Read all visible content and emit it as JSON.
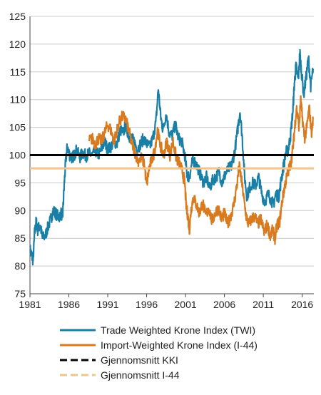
{
  "chart_data": {
    "type": "line",
    "title": "",
    "xlabel": "",
    "ylabel": "",
    "xlim": [
      1981,
      2017.5
    ],
    "ylim": [
      75,
      125
    ],
    "yticks": [
      75,
      80,
      85,
      90,
      95,
      100,
      105,
      110,
      115,
      120,
      125
    ],
    "xticks": [
      1981,
      1986,
      1991,
      1996,
      2001,
      2006,
      2011,
      2016
    ],
    "grid": true,
    "legend_position": "bottom",
    "colors": {
      "twi": "#1a7fa6",
      "i44": "#d97a1f",
      "avg_kki": "#000000",
      "avg_i44": "#f2c48d",
      "grid": "#cccccc"
    },
    "series": [
      {
        "name": "Trade Weighted Krone Index (TWI)",
        "points": [
          [
            1981.0,
            83.0
          ],
          [
            1981.2,
            82.0
          ],
          [
            1981.4,
            81.0
          ],
          [
            1981.6,
            86.0
          ],
          [
            1981.8,
            88.0
          ],
          [
            1982.0,
            86.5
          ],
          [
            1982.3,
            87.5
          ],
          [
            1982.6,
            85.0
          ],
          [
            1983.0,
            85.5
          ],
          [
            1983.3,
            87.0
          ],
          [
            1983.7,
            88.5
          ],
          [
            1984.0,
            90.0
          ],
          [
            1984.3,
            89.5
          ],
          [
            1984.7,
            88.8
          ],
          [
            1985.0,
            89.5
          ],
          [
            1985.2,
            89.0
          ],
          [
            1985.4,
            94.5
          ],
          [
            1985.6,
            99.0
          ],
          [
            1985.8,
            101.5
          ],
          [
            1986.1,
            100.0
          ],
          [
            1986.4,
            99.5
          ],
          [
            1986.7,
            100.0
          ],
          [
            1987.0,
            101.0
          ],
          [
            1987.4,
            99.5
          ],
          [
            1987.8,
            100.5
          ],
          [
            1988.2,
            99.8
          ],
          [
            1988.6,
            100.3
          ],
          [
            1989.0,
            100.0
          ],
          [
            1989.4,
            100.8
          ],
          [
            1989.8,
            100.0
          ],
          [
            1990.2,
            101.0
          ],
          [
            1990.6,
            102.5
          ],
          [
            1991.0,
            101.0
          ],
          [
            1991.4,
            101.5
          ],
          [
            1991.8,
            102.5
          ],
          [
            1992.2,
            102.0
          ],
          [
            1992.6,
            104.5
          ],
          [
            1993.0,
            104.0
          ],
          [
            1993.3,
            105.5
          ],
          [
            1993.7,
            103.5
          ],
          [
            1994.0,
            103.0
          ],
          [
            1994.4,
            102.5
          ],
          [
            1994.8,
            101.0
          ],
          [
            1995.2,
            102.0
          ],
          [
            1995.6,
            103.0
          ],
          [
            1996.0,
            102.0
          ],
          [
            1996.4,
            101.5
          ],
          [
            1996.8,
            103.0
          ],
          [
            1997.2,
            106.0
          ],
          [
            1997.5,
            112.0
          ],
          [
            1997.8,
            107.0
          ],
          [
            1998.1,
            104.5
          ],
          [
            1998.5,
            107.5
          ],
          [
            1998.9,
            104.0
          ],
          [
            1999.3,
            103.5
          ],
          [
            1999.7,
            105.5
          ],
          [
            2000.1,
            103.0
          ],
          [
            2000.5,
            102.5
          ],
          [
            2000.9,
            100.0
          ],
          [
            2001.2,
            96.5
          ],
          [
            2001.5,
            96.0
          ],
          [
            2001.8,
            98.5
          ],
          [
            2002.1,
            99.0
          ],
          [
            2002.5,
            98.0
          ],
          [
            2002.9,
            96.5
          ],
          [
            2003.3,
            95.0
          ],
          [
            2003.7,
            96.0
          ],
          [
            2004.1,
            94.0
          ],
          [
            2004.5,
            95.5
          ],
          [
            2004.9,
            96.0
          ],
          [
            2005.3,
            97.0
          ],
          [
            2005.7,
            95.0
          ],
          [
            2006.1,
            96.5
          ],
          [
            2006.5,
            97.5
          ],
          [
            2006.9,
            98.0
          ],
          [
            2007.3,
            100.5
          ],
          [
            2007.7,
            104.5
          ],
          [
            2008.0,
            108.0
          ],
          [
            2008.3,
            103.0
          ],
          [
            2008.6,
            96.0
          ],
          [
            2008.9,
            92.5
          ],
          [
            2009.2,
            94.0
          ],
          [
            2009.6,
            95.0
          ],
          [
            2010.0,
            94.5
          ],
          [
            2010.4,
            96.0
          ],
          [
            2010.8,
            93.0
          ],
          [
            2011.2,
            91.5
          ],
          [
            2011.6,
            93.0
          ],
          [
            2012.0,
            92.0
          ],
          [
            2012.3,
            91.0
          ],
          [
            2012.6,
            93.0
          ],
          [
            2013.0,
            92.5
          ],
          [
            2013.3,
            95.5
          ],
          [
            2013.6,
            98.0
          ],
          [
            2013.9,
            100.5
          ],
          [
            2014.2,
            101.0
          ],
          [
            2014.5,
            103.5
          ],
          [
            2014.8,
            108.0
          ],
          [
            2015.0,
            113.0
          ],
          [
            2015.2,
            116.0
          ],
          [
            2015.5,
            113.5
          ],
          [
            2015.7,
            118.5
          ],
          [
            2015.9,
            115.0
          ],
          [
            2016.2,
            111.0
          ],
          [
            2016.5,
            114.0
          ],
          [
            2016.8,
            117.5
          ],
          [
            2017.1,
            112.5
          ],
          [
            2017.4,
            115.5
          ]
        ]
      },
      {
        "name": "Import-Weighted Krone Index (I-44)",
        "points": [
          [
            1988.6,
            102.5
          ],
          [
            1989.0,
            103.0
          ],
          [
            1989.4,
            102.0
          ],
          [
            1989.8,
            103.0
          ],
          [
            1990.2,
            102.5
          ],
          [
            1990.6,
            104.0
          ],
          [
            1991.0,
            105.5
          ],
          [
            1991.4,
            104.5
          ],
          [
            1991.8,
            102.5
          ],
          [
            1992.1,
            104.0
          ],
          [
            1992.5,
            106.0
          ],
          [
            1992.9,
            107.0
          ],
          [
            1993.3,
            106.5
          ],
          [
            1993.7,
            104.5
          ],
          [
            1994.1,
            102.0
          ],
          [
            1994.5,
            100.5
          ],
          [
            1994.9,
            99.0
          ],
          [
            1995.3,
            99.5
          ],
          [
            1995.7,
            98.5
          ],
          [
            1996.0,
            94.5
          ],
          [
            1996.3,
            97.5
          ],
          [
            1996.6,
            99.0
          ],
          [
            1997.0,
            100.5
          ],
          [
            1997.4,
            104.5
          ],
          [
            1997.8,
            101.5
          ],
          [
            1998.2,
            100.0
          ],
          [
            1998.6,
            102.5
          ],
          [
            1999.0,
            100.0
          ],
          [
            1999.4,
            102.5
          ],
          [
            1999.8,
            99.5
          ],
          [
            2000.2,
            98.5
          ],
          [
            2000.6,
            97.0
          ],
          [
            2000.9,
            95.0
          ],
          [
            2001.1,
            90.5
          ],
          [
            2001.3,
            89.0
          ],
          [
            2001.5,
            86.5
          ],
          [
            2001.7,
            90.0
          ],
          [
            2002.0,
            92.5
          ],
          [
            2002.4,
            91.0
          ],
          [
            2002.8,
            89.5
          ],
          [
            2003.2,
            91.5
          ],
          [
            2003.6,
            89.0
          ],
          [
            2004.0,
            90.5
          ],
          [
            2004.4,
            88.0
          ],
          [
            2004.8,
            89.5
          ],
          [
            2005.2,
            90.5
          ],
          [
            2005.6,
            88.5
          ],
          [
            2006.0,
            89.5
          ],
          [
            2006.4,
            87.5
          ],
          [
            2006.8,
            89.0
          ],
          [
            2007.2,
            91.0
          ],
          [
            2007.6,
            94.5
          ],
          [
            2007.9,
            98.0
          ],
          [
            2008.2,
            95.5
          ],
          [
            2008.5,
            92.0
          ],
          [
            2008.8,
            89.0
          ],
          [
            2009.1,
            87.5
          ],
          [
            2009.5,
            88.5
          ],
          [
            2009.9,
            89.0
          ],
          [
            2010.3,
            87.5
          ],
          [
            2010.7,
            88.5
          ],
          [
            2011.1,
            86.0
          ],
          [
            2011.5,
            87.5
          ],
          [
            2011.9,
            85.5
          ],
          [
            2012.2,
            86.5
          ],
          [
            2012.5,
            85.0
          ],
          [
            2012.8,
            87.5
          ],
          [
            2013.1,
            88.0
          ],
          [
            2013.4,
            91.5
          ],
          [
            2013.7,
            94.0
          ],
          [
            2014.0,
            96.0
          ],
          [
            2014.3,
            97.5
          ],
          [
            2014.6,
            99.0
          ],
          [
            2014.9,
            102.5
          ],
          [
            2015.1,
            106.0
          ],
          [
            2015.3,
            108.5
          ],
          [
            2015.6,
            105.0
          ],
          [
            2015.8,
            110.0
          ],
          [
            2016.0,
            107.0
          ],
          [
            2016.3,
            103.0
          ],
          [
            2016.6,
            105.0
          ],
          [
            2016.9,
            108.5
          ],
          [
            2017.2,
            104.0
          ],
          [
            2017.4,
            106.5
          ]
        ]
      },
      {
        "name": "Gjennomsnitt KKI",
        "style": "dashed",
        "value": 100.0
      },
      {
        "name": "Gjennomsnitt I-44",
        "style": "dashed",
        "value": 97.6
      }
    ]
  }
}
